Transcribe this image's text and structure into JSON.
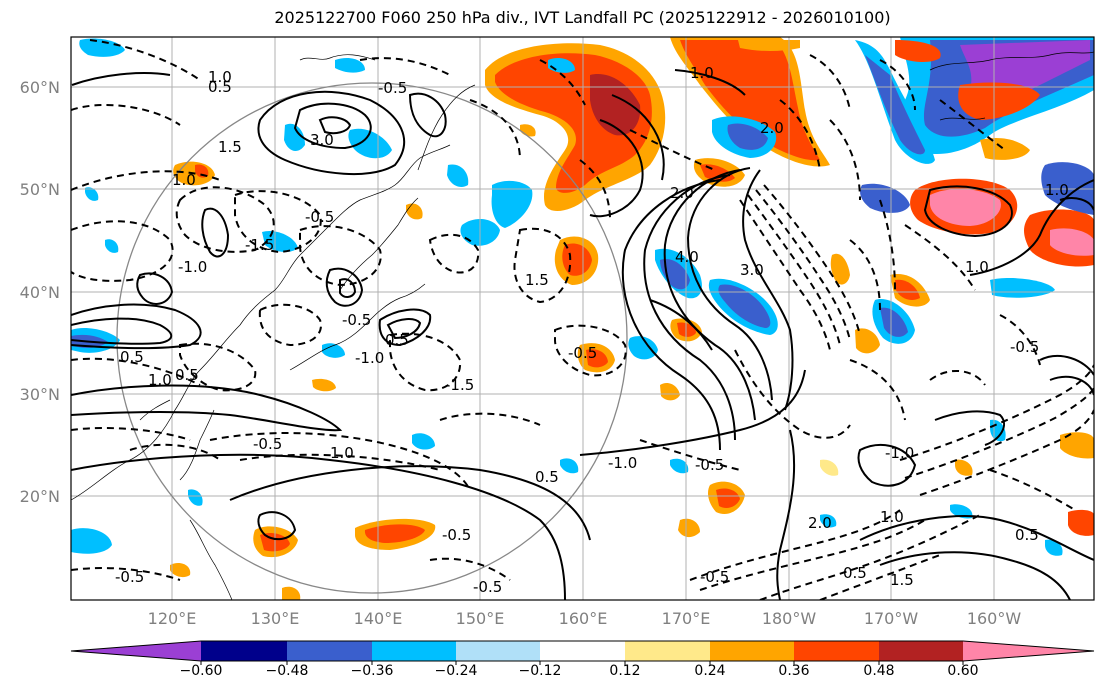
{
  "title": "2025122700 F060 250 hPa div., IVT Landfall PC (2025122912 - 2026010100)",
  "lat_labels": [
    "60°N",
    "50°N",
    "40°N",
    "30°N",
    "20°N"
  ],
  "lon_labels": [
    "120°E",
    "130°E",
    "140°E",
    "150°E",
    "160°E",
    "170°E",
    "180°W",
    "170°W",
    "160°W"
  ],
  "colorbar": {
    "ticks": [
      "−0.60",
      "−0.48",
      "−0.36",
      "−0.24",
      "−0.12",
      "0.12",
      "0.24",
      "0.36",
      "0.48",
      "0.60"
    ],
    "colors": [
      "#9b3fd4",
      "#00008b",
      "#3a5fcd",
      "#00bfff",
      "#b0e0f8",
      "#ffffff",
      "#ffe98a",
      "#ffa500",
      "#ff4500",
      "#b22222",
      "#ff85a8"
    ]
  },
  "contour_labels": {
    "c1": "1.0",
    "c2": "-0.5",
    "c3": "0.5",
    "c4": "3.0",
    "c5": "1.5",
    "c6": "1.0",
    "c7": "-1.0",
    "c8": "-0.5",
    "c9": "-1.5",
    "c10": "-0.5",
    "c11": "0.5",
    "c12": "-1.0",
    "c13": "0.5",
    "c14": "1.0",
    "c15": "0.5",
    "c16": "-0.5",
    "c17": "-0.5",
    "c18": "-0.5",
    "c19": "1.0",
    "c20": "4.0",
    "c21": "3.0",
    "c22": "2.0",
    "c23": "-1.0",
    "c24": "-0.5",
    "c25": "2.0",
    "c26": "1.0",
    "c27": "1.5",
    "c28": "-0.5",
    "c29": "-1.5",
    "c30": "0.5",
    "c31": "-0.5",
    "c32": "-1.0",
    "c33": "1.0",
    "c34": "1.0",
    "c35": "1.5",
    "c36": "-0.5",
    "c37": "0.5",
    "c38": "2.0",
    "c39": "-0.5",
    "c40": "0.5",
    "c41": "1.0"
  }
}
